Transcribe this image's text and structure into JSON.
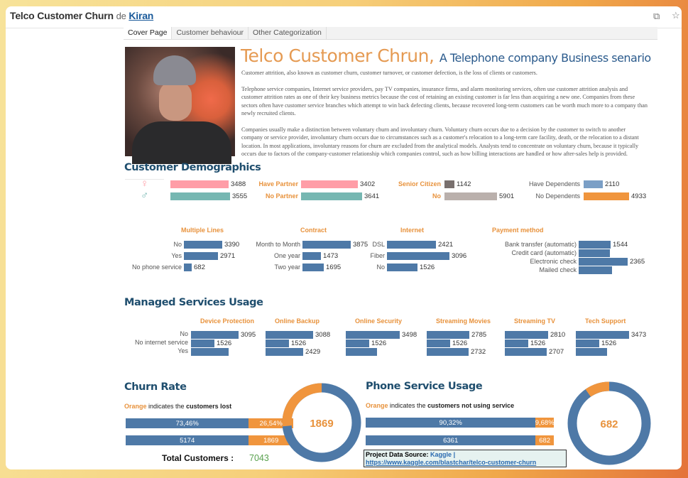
{
  "window": {
    "title": "Telco Customer Churn",
    "by": "de",
    "author": "Kiran",
    "icons": [
      "copy-icon",
      "star-icon"
    ]
  },
  "tabs": [
    {
      "label": "Cover Page",
      "active": true
    },
    {
      "label": "Customer behaviour"
    },
    {
      "label": "Other Categorization"
    }
  ],
  "cover": {
    "title": "Telco Customer Chrun,",
    "subtitle": "A Telephone company Business senario",
    "paragraphs": [
      "Customer attrition, also known as customer churn, customer turnover, or customer defection, is the loss of clients or customers.",
      "Telephone service companies, Internet service providers, pay TV companies, insurance firms, and alarm monitoring services, often use customer attrition analysis and customer attrition rates as one of their key business metrics because the cost of retaining an existing customer is far less than acquiring a new one. Companies from these sectors often have customer service branches which attempt to win back defecting clients, because recovered long-term customers can be worth much more to a company than newly recruited clients.",
      "Companies usually make a distinction between voluntary churn and involuntary churn. Voluntary churn occurs due to a decision by the customer to switch to another company or service provider, involuntary churn occurs due to circumstances such as a customer's relocation to a long-term care facility, death, or the relocation to a distant location. In most applications, involuntary reasons for churn are excluded from the analytical models. Analysts tend to concentrate on voluntary churn, because it typically occurs due to factors of the company-customer relationship which companies control, such as how billing interactions are handled or how after-sales help is provided."
    ]
  },
  "colors": {
    "orange": "#f0953d",
    "blue": "#4e79a7",
    "pink": "#ff9da7",
    "teal": "#76b7b2",
    "gray": "#79706e",
    "lightgray": "#bab0ac",
    "green": "#59a14f"
  },
  "demographics": {
    "title": "Customer Demographics",
    "gender": [
      {
        "icon": "female-icon",
        "glyph": "♀",
        "value": 3488,
        "label": "3488"
      },
      {
        "icon": "male-icon",
        "glyph": "♂",
        "value": 3555,
        "label": "3555"
      }
    ],
    "partner": [
      {
        "name": "Have Partner",
        "value": 3402,
        "label": "3402"
      },
      {
        "name": "No Partner",
        "value": 3641,
        "label": "3641"
      }
    ],
    "senior": [
      {
        "name": "Senior Citizen",
        "value": 1142,
        "label": "1142"
      },
      {
        "name": "No",
        "value": 5901,
        "label": "5901"
      }
    ],
    "dependents": [
      {
        "name": "Have Dependents",
        "value": 2110,
        "label": "2110"
      },
      {
        "name": "No Dependents",
        "value": 4933,
        "label": "4933"
      }
    ],
    "groups": [
      {
        "title": "Multiple Lines",
        "rows": [
          {
            "name": "No",
            "value": 3390,
            "label": "3390"
          },
          {
            "name": "Yes",
            "value": 2971,
            "label": "2971"
          },
          {
            "name": "No phone service",
            "value": 682,
            "label": "682"
          }
        ]
      },
      {
        "title": "Contract",
        "rows": [
          {
            "name": "Month to Month",
            "value": 3875,
            "label": "3875"
          },
          {
            "name": "One year",
            "value": 1473,
            "label": "1473"
          },
          {
            "name": "Two year",
            "value": 1695,
            "label": "1695"
          }
        ]
      },
      {
        "title": "Internet",
        "rows": [
          {
            "name": "DSL",
            "value": 2421,
            "label": "2421"
          },
          {
            "name": "Fiber",
            "value": 3096,
            "label": "3096"
          },
          {
            "name": "No",
            "value": 1526,
            "label": "1526"
          }
        ]
      },
      {
        "title": "Payment method",
        "rows": [
          {
            "name": "Bank transfer (automatic)",
            "value": 1544,
            "label": "1544"
          },
          {
            "name": "Credit card (automatic)",
            "value": 1522,
            "label": ""
          },
          {
            "name": "Electronic check",
            "value": 2365,
            "label": "2365"
          },
          {
            "name": "Mailed check",
            "value": 1612,
            "label": ""
          }
        ]
      }
    ]
  },
  "services": {
    "title": "Managed Services Usage",
    "row_names": [
      "No",
      "No internet service",
      "Yes"
    ],
    "groups": [
      {
        "title": "Device Protection",
        "values": [
          3095,
          1526,
          2422
        ],
        "labels": [
          "3095",
          "1526",
          ""
        ]
      },
      {
        "title": "Online Backup",
        "values": [
          3088,
          1526,
          2429
        ],
        "labels": [
          "3088",
          "1526",
          "2429"
        ]
      },
      {
        "title": "Online Security",
        "values": [
          3498,
          1526,
          2019
        ],
        "labels": [
          "3498",
          "1526",
          ""
        ]
      },
      {
        "title": "Streaming Movies",
        "values": [
          2785,
          1526,
          2732
        ],
        "labels": [
          "2785",
          "1526",
          "2732"
        ]
      },
      {
        "title": "Streaming TV",
        "values": [
          2810,
          1526,
          2707
        ],
        "labels": [
          "2810",
          "1526",
          "2707"
        ]
      },
      {
        "title": "Tech Support",
        "values": [
          3473,
          1526,
          2044
        ],
        "labels": [
          "3473",
          "1526",
          ""
        ]
      }
    ]
  },
  "churn": {
    "title": "Churn Rate",
    "note_orange": "Orange",
    "note_mid": "indicates the",
    "note_bold": "customers lost",
    "pct": [
      "73,46%",
      "26,54%"
    ],
    "share": [
      73.46,
      26.54
    ],
    "counts": [
      "5174",
      "1869"
    ],
    "total_label": "Total Customers :",
    "total": "7043",
    "donut_label": "1869"
  },
  "phone": {
    "title": "Phone Service Usage",
    "note_orange": "Orange",
    "note_mid": "indicates the",
    "note_bold": "customers not using service",
    "pct": [
      "90,32%",
      "9,68%"
    ],
    "share": [
      90.32,
      9.68
    ],
    "counts": [
      "6361",
      "682"
    ],
    "donut_label": "682"
  },
  "source": {
    "label": "Project Data Source:",
    "name": "Kaggle",
    "sep": "|",
    "url": "https://www.kaggle.com/blastchar/telco-customer-churn"
  }
}
